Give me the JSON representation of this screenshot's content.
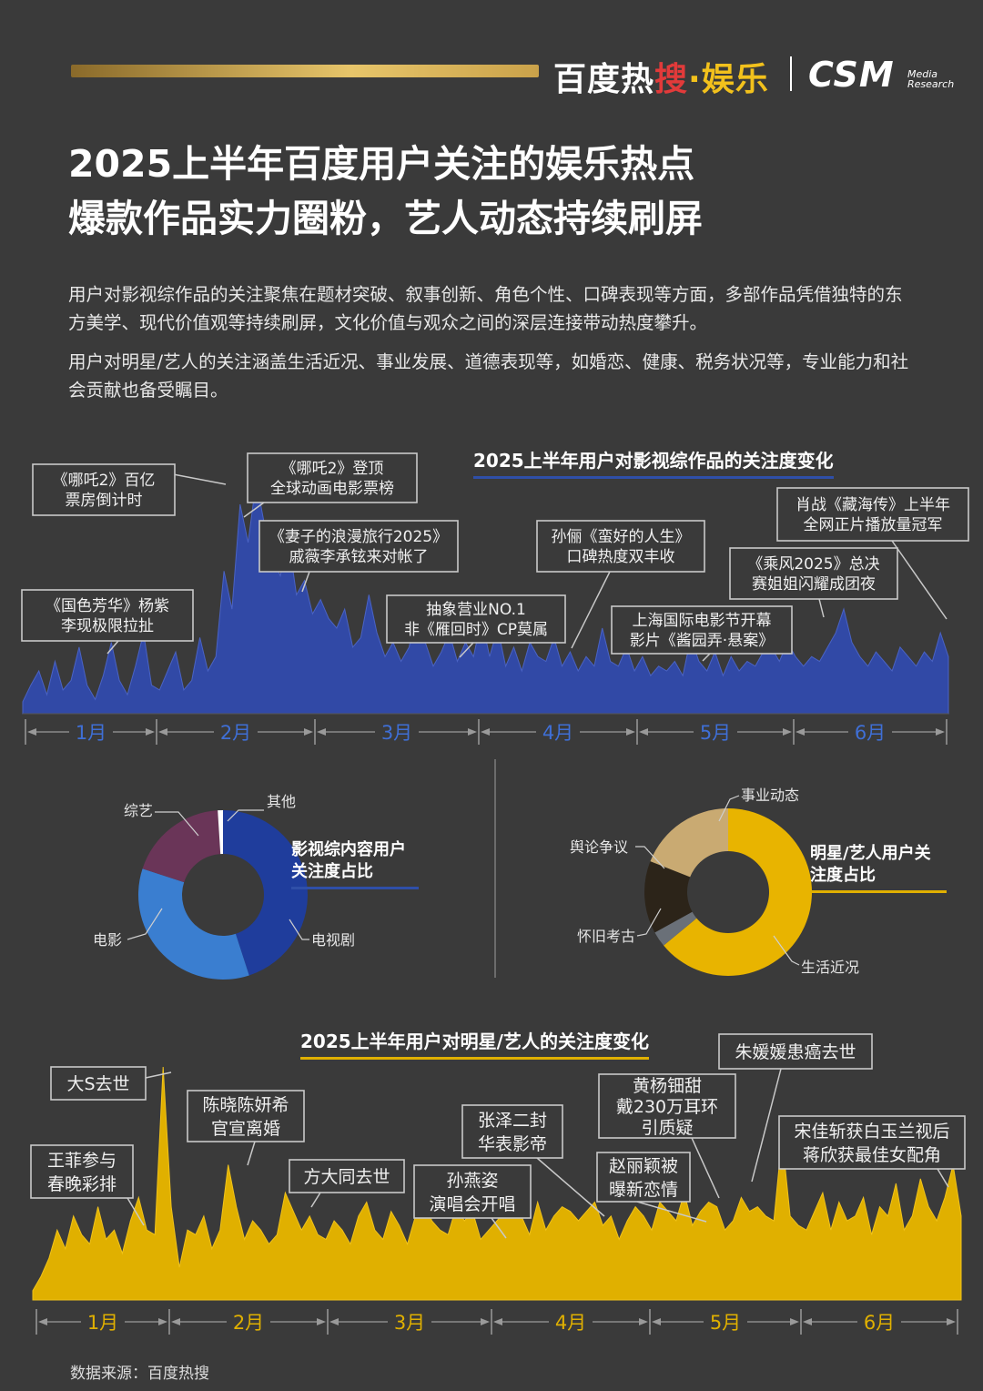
{
  "header": {
    "brand_part1": "百度热",
    "brand_part2": "搜",
    "brand_part3": "·娱乐",
    "csm": "CSM",
    "csm_sub1": "Media",
    "csm_sub2": "Research"
  },
  "title": {
    "line1": "2025上半年百度用户关注的娱乐热点",
    "line2": "爆款作品实力圈粉，艺人动态持续刷屏"
  },
  "intro": {
    "p1": "用户对影视综作品的关注聚焦在题材突破、叙事创新、角色个性、口碑表现等方面，多部作品凭借独特的东方美学、现代价值观等持续刷屏，文化价值与观众之间的深层连接带动热度攀升。",
    "p2": "用户对明星/艺人的关注涵盖生活近况、事业发展、道德表现等，如婚恋、健康、税务状况等，专业能力和社会贡献也备受瞩目。"
  },
  "source": "数据来源：百度热搜",
  "colors": {
    "background": "#3a3a3a",
    "blue": "#3149a6",
    "gold": "#e0b000",
    "axis": "#9a9a9a",
    "callout_border": "#c9c9c9"
  },
  "chart_data": [
    {
      "type": "area",
      "title": "2025上半年用户对影视综作品的关注度变化",
      "x_labels": [
        "1月",
        "2月",
        "3月",
        "4月",
        "5月",
        "6月"
      ],
      "y_scale": "relative (no axis printed)",
      "values": [
        5,
        12,
        18,
        8,
        22,
        10,
        14,
        28,
        12,
        6,
        16,
        30,
        14,
        8,
        20,
        34,
        12,
        10,
        18,
        26,
        10,
        14,
        32,
        18,
        24,
        60,
        44,
        88,
        72,
        98,
        80,
        66,
        58,
        74,
        50,
        56,
        42,
        48,
        40,
        36,
        44,
        28,
        32,
        50,
        34,
        24,
        30,
        22,
        28,
        44,
        30,
        20,
        26,
        34,
        22,
        30,
        24,
        40,
        24,
        36,
        20,
        28,
        18,
        30,
        24,
        22,
        32,
        20,
        26,
        18,
        24,
        20,
        36,
        22,
        20,
        28,
        18,
        24,
        16,
        20,
        18,
        22,
        16,
        32,
        22,
        18,
        26,
        16,
        24,
        18,
        22,
        20,
        26,
        28,
        22,
        30,
        24,
        20,
        24,
        22,
        28,
        34,
        44,
        30,
        24,
        20,
        26,
        22,
        18,
        28,
        24,
        20,
        26,
        22,
        34,
        24
      ],
      "annotations": [
        {
          "lines": [
            "《哪吒2》百亿",
            "票房倒计时"
          ]
        },
        {
          "lines": [
            "《哪吒2》登顶",
            "全球动画电影票榜"
          ]
        },
        {
          "lines": [
            "《妻子的浪漫旅行2025》",
            "戚薇李承铉来对帐了"
          ]
        },
        {
          "lines": [
            "《国色芳华》杨紫",
            "李现极限拉扯"
          ]
        },
        {
          "lines": [
            "抽象营业NO.1",
            "非《雁回时》CP莫属"
          ]
        },
        {
          "lines": [
            "孙俪《蛮好的人生》",
            "口碑热度双丰收"
          ]
        },
        {
          "lines": [
            "肖战《藏海传》上半年",
            "全网正片播放量冠军"
          ]
        },
        {
          "lines": [
            "《乘风2025》总决",
            "赛姐姐闪耀成团夜"
          ]
        },
        {
          "lines": [
            "上海国际电影节开幕",
            "影片《酱园弄·悬案》"
          ]
        }
      ]
    },
    {
      "type": "pie",
      "title": "影视综内容用户关注度占比",
      "labels": [
        "电视剧",
        "电影",
        "综艺",
        "其他"
      ],
      "values": [
        45,
        35,
        19,
        1
      ],
      "colors": [
        "#1f3d9c",
        "#3a7ed0",
        "#6a3558",
        "#ffffff"
      ]
    },
    {
      "type": "pie",
      "title": "明星/艺人用户关注度占比",
      "labels": [
        "生活近况",
        "怀旧考古",
        "舆论争议",
        "事业动态"
      ],
      "values": [
        64,
        3,
        14,
        19
      ],
      "colors": [
        "#e8b400",
        "#6a7078",
        "#2c2419",
        "#c9aa72"
      ]
    },
    {
      "type": "area",
      "title": "2025上半年用户对明星/艺人的关注度变化",
      "x_labels": [
        "1月",
        "2月",
        "3月",
        "4月",
        "5月",
        "6月"
      ],
      "y_scale": "relative (no axis printed)",
      "values": [
        4,
        10,
        18,
        30,
        22,
        36,
        28,
        24,
        40,
        26,
        30,
        20,
        34,
        44,
        30,
        28,
        100,
        40,
        14,
        30,
        28,
        36,
        22,
        30,
        58,
        40,
        26,
        34,
        30,
        24,
        28,
        46,
        38,
        30,
        36,
        28,
        26,
        34,
        30,
        24,
        36,
        42,
        30,
        26,
        38,
        32,
        24,
        36,
        44,
        34,
        30,
        28,
        40,
        34,
        38,
        26,
        30,
        34,
        38,
        44,
        36,
        28,
        42,
        30,
        36,
        40,
        38,
        34,
        38,
        42,
        32,
        36,
        26,
        34,
        40,
        36,
        30,
        42,
        38,
        34,
        46,
        32,
        38,
        42,
        40,
        30,
        34,
        44,
        38,
        40,
        36,
        34,
        70,
        36,
        32,
        30,
        38,
        46,
        30,
        42,
        34,
        36,
        44,
        28,
        40,
        36,
        50,
        30,
        36,
        52,
        40,
        34,
        44,
        58,
        36
      ],
      "annotations": [
        {
          "lines": [
            "大S去世"
          ]
        },
        {
          "lines": [
            "王菲参与",
            "春晚彩排"
          ]
        },
        {
          "lines": [
            "陈晓陈妍希",
            "官宣离婚"
          ]
        },
        {
          "lines": [
            "方大同去世"
          ]
        },
        {
          "lines": [
            "孙燕姿",
            "演唱会开唱"
          ]
        },
        {
          "lines": [
            "张泽二封",
            "华表影帝"
          ]
        },
        {
          "lines": [
            "黄杨钿甜",
            "戴230万耳环",
            "引质疑"
          ]
        },
        {
          "lines": [
            "赵丽颖被",
            "曝新恋情"
          ]
        },
        {
          "lines": [
            "朱媛媛患癌去世"
          ]
        },
        {
          "lines": [
            "宋佳斩获白玉兰视后",
            "蒋欣获最佳女配角"
          ]
        }
      ]
    }
  ]
}
